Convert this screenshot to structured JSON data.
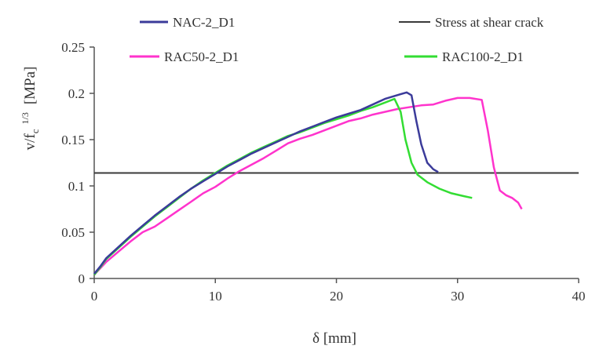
{
  "chart_data": {
    "type": "line",
    "xlabel": "δ [mm]",
    "ylabel": "v/f",
    "ylabel_sub": "c",
    "ylabel_sup": "1/3",
    "ylabel_unit": "[MPa]",
    "xlim": [
      0,
      40
    ],
    "ylim": [
      0,
      0.25
    ],
    "xticks": [
      0,
      10,
      20,
      30,
      40
    ],
    "yticks": [
      0,
      0.05,
      0.1,
      0.15,
      0.2,
      0.25
    ],
    "xtick_labels": [
      "0",
      "10",
      "20",
      "30",
      "40"
    ],
    "ytick_labels": [
      "0",
      "0.05",
      "0.1",
      "0.15",
      "0.2",
      "0.25"
    ],
    "grid": false,
    "legend": {
      "placement": "top",
      "entries": [
        "NAC-2_D1",
        "Stress at shear crack",
        "RAC50-2_D1",
        "RAC100-2_D1"
      ]
    },
    "series": [
      {
        "name": "NAC-2_D1",
        "color": "#3b3b9a",
        "x": [
          0,
          0.5,
          1,
          2,
          3,
          4,
          5,
          6,
          7,
          8,
          9,
          10,
          11,
          12,
          13,
          14,
          15,
          16,
          17,
          18,
          19,
          20,
          21,
          22,
          23,
          24,
          25,
          25.8,
          26.2,
          26.6,
          27.0,
          27.5,
          28.0,
          28.4
        ],
        "y": [
          0.005,
          0.013,
          0.022,
          0.034,
          0.046,
          0.057,
          0.068,
          0.078,
          0.088,
          0.097,
          0.105,
          0.113,
          0.121,
          0.128,
          0.135,
          0.141,
          0.147,
          0.153,
          0.159,
          0.164,
          0.169,
          0.174,
          0.178,
          0.182,
          0.188,
          0.194,
          0.198,
          0.201,
          0.198,
          0.17,
          0.145,
          0.125,
          0.118,
          0.115
        ]
      },
      {
        "name": "Stress at shear crack",
        "color": "#3a3a3a",
        "x": [
          0,
          40
        ],
        "y": [
          0.114,
          0.114
        ]
      },
      {
        "name": "RAC50-2_D1",
        "color": "#ff33cc",
        "x": [
          0,
          0.5,
          1,
          2,
          3,
          4,
          5,
          6,
          7,
          8,
          9,
          10,
          11,
          12,
          13,
          14,
          15,
          16,
          17,
          18,
          19,
          20,
          21,
          22,
          23,
          24,
          25,
          26,
          27,
          28,
          29,
          30,
          31,
          32,
          32.5,
          33,
          33.5,
          34,
          34.5,
          35,
          35.3
        ],
        "y": [
          0.004,
          0.011,
          0.018,
          0.029,
          0.04,
          0.05,
          0.056,
          0.065,
          0.074,
          0.083,
          0.092,
          0.099,
          0.108,
          0.116,
          0.123,
          0.13,
          0.138,
          0.146,
          0.151,
          0.155,
          0.16,
          0.165,
          0.17,
          0.173,
          0.177,
          0.18,
          0.183,
          0.185,
          0.187,
          0.188,
          0.192,
          0.195,
          0.195,
          0.193,
          0.16,
          0.12,
          0.095,
          0.09,
          0.087,
          0.082,
          0.075
        ]
      },
      {
        "name": "RAC100-2_D1",
        "color": "#33dd33",
        "x": [
          0,
          0.5,
          1,
          2,
          3,
          4,
          5,
          6,
          7,
          8,
          9,
          10,
          11,
          12,
          13,
          14,
          15,
          16,
          17,
          18,
          19,
          20,
          21,
          22,
          23,
          24,
          24.8,
          25.3,
          25.7,
          26.2,
          26.7,
          27.5,
          28.5,
          29.5,
          30.5,
          31.2
        ],
        "y": [
          0.004,
          0.012,
          0.021,
          0.033,
          0.045,
          0.056,
          0.067,
          0.077,
          0.087,
          0.097,
          0.106,
          0.114,
          0.122,
          0.129,
          0.136,
          0.142,
          0.148,
          0.154,
          0.158,
          0.163,
          0.168,
          0.172,
          0.176,
          0.181,
          0.185,
          0.19,
          0.194,
          0.18,
          0.15,
          0.125,
          0.112,
          0.104,
          0.097,
          0.092,
          0.089,
          0.087
        ]
      }
    ]
  }
}
